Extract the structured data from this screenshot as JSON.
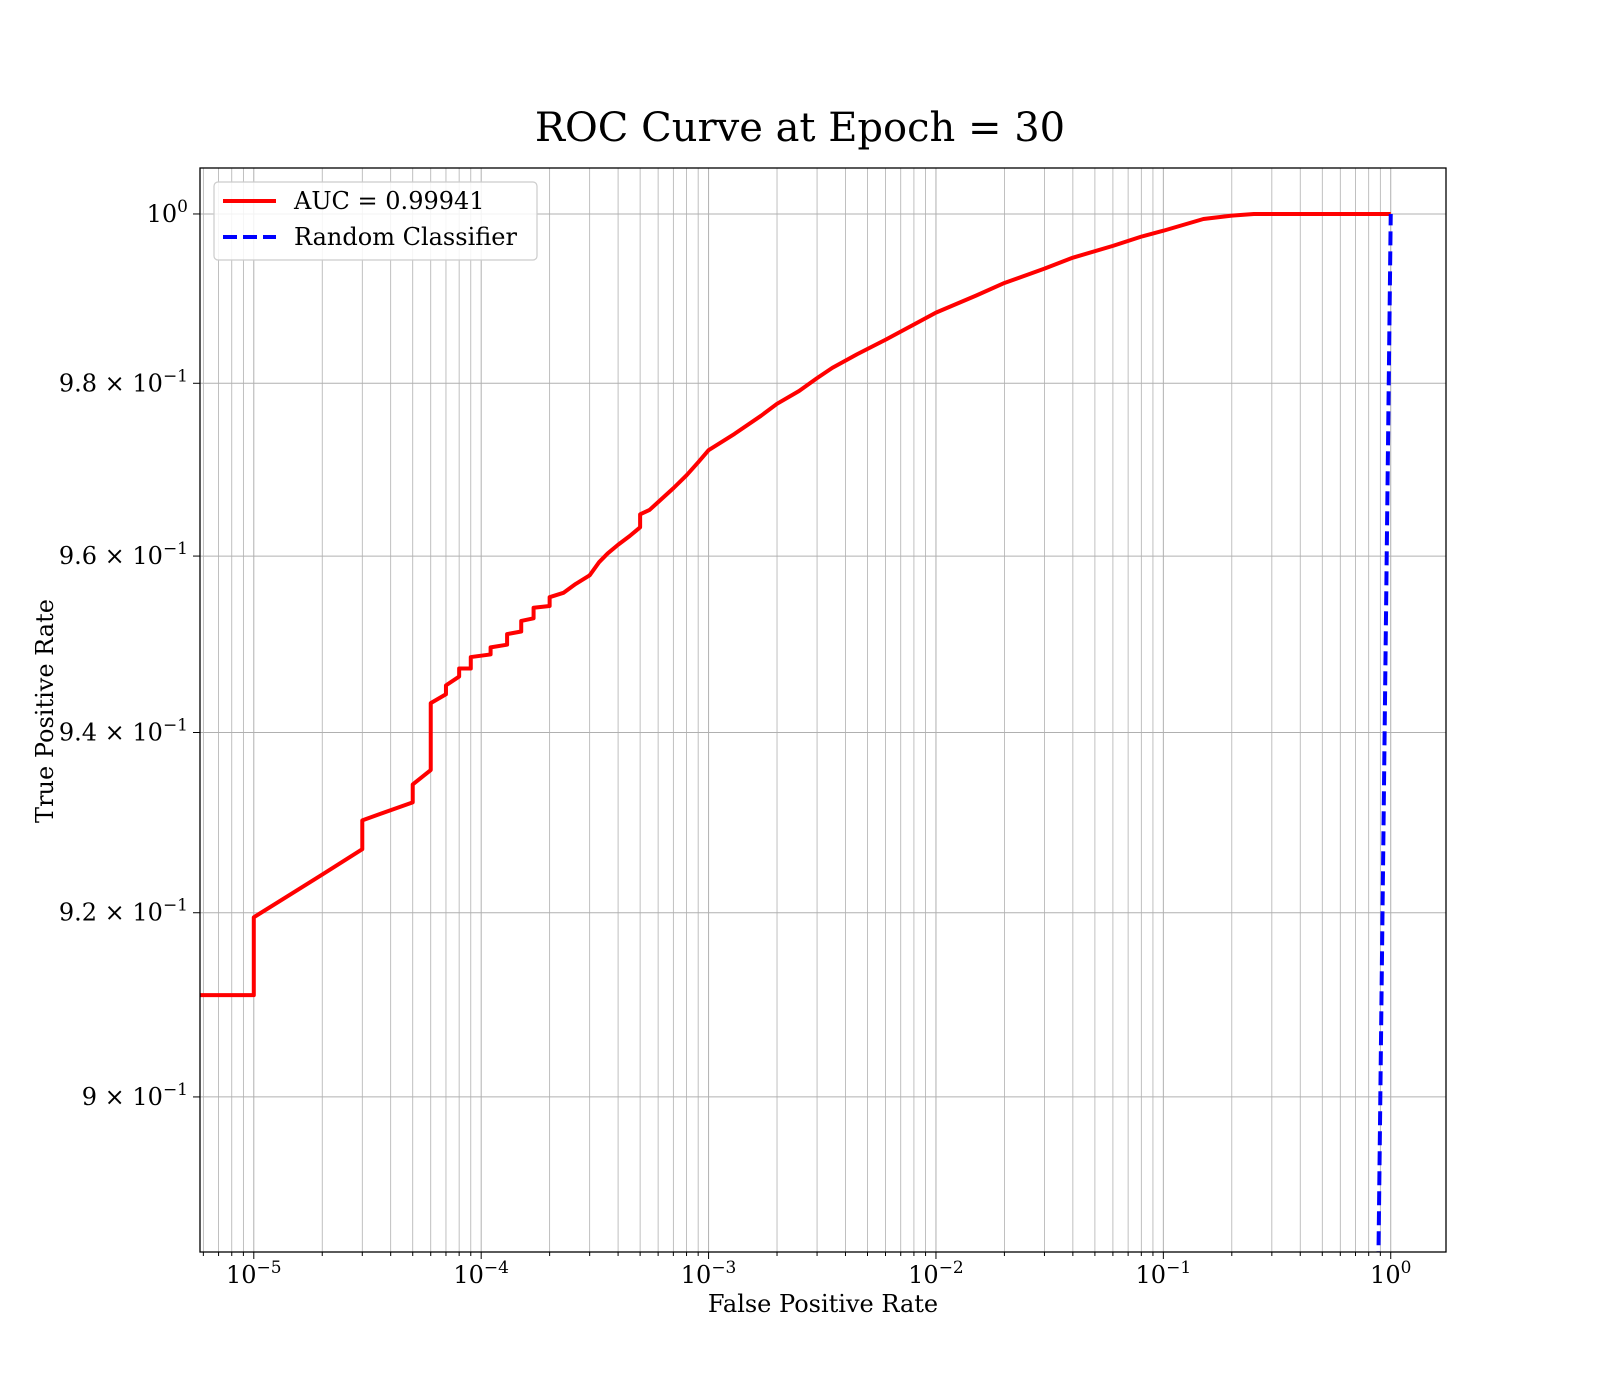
{
  "chart_data": {
    "type": "line",
    "title": "ROC Curve at Epoch = 30",
    "xlabel": "False Positive Rate",
    "ylabel": "True Positive Rate",
    "x_scale": "log",
    "y_scale": "log",
    "xlim": [
      5.8e-06,
      1.75
    ],
    "ylim": [
      0.8835,
      1.0055
    ],
    "grid": true,
    "legend_position": "top-left",
    "x_ticks": [
      {
        "value": 1e-05,
        "base": "10",
        "exp": "−5"
      },
      {
        "value": 0.0001,
        "base": "10",
        "exp": "−4"
      },
      {
        "value": 0.001,
        "base": "10",
        "exp": "−3"
      },
      {
        "value": 0.01,
        "base": "10",
        "exp": "−2"
      },
      {
        "value": 0.1,
        "base": "10",
        "exp": "−1"
      },
      {
        "value": 1,
        "base": "10",
        "exp": "0"
      }
    ],
    "y_ticks": [
      {
        "value": 0.9,
        "base": "9 × 10",
        "exp": "−1"
      },
      {
        "value": 0.92,
        "base": "9.2 × 10",
        "exp": "−1"
      },
      {
        "value": 0.94,
        "base": "9.4 × 10",
        "exp": "−1"
      },
      {
        "value": 0.96,
        "base": "9.6 × 10",
        "exp": "−1"
      },
      {
        "value": 0.98,
        "base": "9.8 × 10",
        "exp": "−1"
      },
      {
        "value": 1.0,
        "base": "10",
        "exp": "0"
      }
    ],
    "series": [
      {
        "name": "AUC = 0.99941",
        "color": "#ff0000",
        "style": "solid",
        "points": [
          [
            5.8e-06,
            0.911
          ],
          [
            1e-05,
            0.911
          ],
          [
            1e-05,
            0.9195
          ],
          [
            2e-05,
            0.9242
          ],
          [
            3e-05,
            0.927
          ],
          [
            3e-05,
            0.9302
          ],
          [
            5e-05,
            0.9322
          ],
          [
            5e-05,
            0.9342
          ],
          [
            6e-05,
            0.9358
          ],
          [
            6e-05,
            0.9433
          ],
          [
            7e-05,
            0.9443
          ],
          [
            7e-05,
            0.9453
          ],
          [
            8e-05,
            0.9463
          ],
          [
            8e-05,
            0.9472
          ],
          [
            9e-05,
            0.9472
          ],
          [
            9e-05,
            0.9485
          ],
          [
            0.00011,
            0.9488
          ],
          [
            0.00011,
            0.9496
          ],
          [
            0.00013,
            0.9499
          ],
          [
            0.00013,
            0.9511
          ],
          [
            0.00015,
            0.9514
          ],
          [
            0.00015,
            0.9526
          ],
          [
            0.00017,
            0.9529
          ],
          [
            0.00017,
            0.9541
          ],
          [
            0.0002,
            0.9543
          ],
          [
            0.0002,
            0.9553
          ],
          [
            0.00023,
            0.9558
          ],
          [
            0.00026,
            0.9568
          ],
          [
            0.0003,
            0.9578
          ],
          [
            0.00033,
            0.9593
          ],
          [
            0.00036,
            0.9603
          ],
          [
            0.0004,
            0.9613
          ],
          [
            0.00045,
            0.9623
          ],
          [
            0.0005,
            0.9633
          ],
          [
            0.0005,
            0.9648
          ],
          [
            0.00055,
            0.9653
          ],
          [
            0.0006,
            0.9662
          ],
          [
            0.0007,
            0.9678
          ],
          [
            0.0008,
            0.9693
          ],
          [
            0.0009,
            0.9708
          ],
          [
            0.001,
            0.9722
          ],
          [
            0.0013,
            0.9741
          ],
          [
            0.0017,
            0.9762
          ],
          [
            0.002,
            0.9776
          ],
          [
            0.0025,
            0.9791
          ],
          [
            0.003,
            0.9806
          ],
          [
            0.0035,
            0.9818
          ],
          [
            0.0045,
            0.9834
          ],
          [
            0.006,
            0.9851
          ],
          [
            0.008,
            0.9869
          ],
          [
            0.01,
            0.9883
          ],
          [
            0.015,
            0.9903
          ],
          [
            0.02,
            0.9918
          ],
          [
            0.03,
            0.9935
          ],
          [
            0.04,
            0.9948
          ],
          [
            0.06,
            0.9962
          ],
          [
            0.08,
            0.9973
          ],
          [
            0.1,
            0.998
          ],
          [
            0.15,
            0.9994
          ],
          [
            0.2,
            0.9998
          ],
          [
            0.25,
            1.0
          ],
          [
            1.0,
            1.0
          ]
        ]
      },
      {
        "name": "Random Classifier",
        "color": "#0000ff",
        "style": "dashed",
        "points": [
          [
            0.88,
            0.88
          ],
          [
            1.0,
            1.0
          ]
        ]
      }
    ]
  }
}
